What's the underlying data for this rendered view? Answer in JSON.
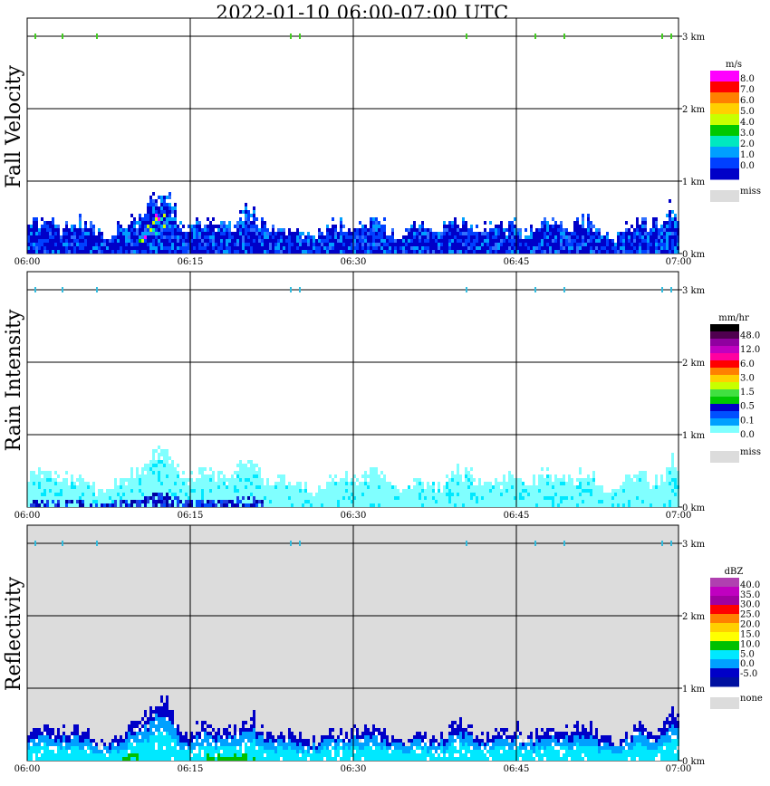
{
  "title": "2022-01-10   06:00-07:00 UTC",
  "time_ticks": [
    "06:00",
    "06:15",
    "06:30",
    "06:45",
    "07:00"
  ],
  "height_ticks": [
    "0 km",
    "1 km",
    "2 km",
    "3 km"
  ],
  "panels": [
    {
      "ylabel": "Fall Velocity",
      "background": "#ffffff",
      "legend": {
        "unit": "m/s",
        "colors": [
          "#ff00ff",
          "#ff0000",
          "#ff8000",
          "#ffd000",
          "#c8ff00",
          "#00c800",
          "#00e8c0",
          "#00a0ff",
          "#0040ff",
          "#0000c8"
        ],
        "labels": [
          "8.0",
          "7.0",
          "6.0",
          "5.0",
          "4.0",
          "3.0",
          "2.0",
          "1.0",
          "0.0"
        ],
        "miss_color": "#dcdcdc",
        "miss_label": "miss"
      },
      "echo_colors": [
        "#0000c8",
        "#0040ff",
        "#3070ff",
        "#00a0ff"
      ],
      "accent_colors": [
        "#00e8c0",
        "#c8ff00",
        "#ff00ff",
        "#00c800"
      ],
      "top_marker_color": "#44cc22"
    },
    {
      "ylabel": "Rain Intensity",
      "background": "#ffffff",
      "legend": {
        "unit": "mm/hr",
        "colors": [
          "#000000",
          "#500050",
          "#9000a0",
          "#c000c0",
          "#ff00a0",
          "#ff0000",
          "#ff8000",
          "#ffd000",
          "#c8ff00",
          "#40e040",
          "#00c800",
          "#0000c8",
          "#0050ff",
          "#00a0ff",
          "#80ffff",
          "#ffffff"
        ],
        "labels": [
          "48.0",
          "12.0",
          "6.0",
          "3.0",
          "1.5",
          "0.5",
          "0.1",
          "0.0"
        ],
        "miss_color": "#dcdcdc",
        "miss_label": "miss"
      },
      "echo_colors": [
        "#80ffff",
        "#80ffff",
        "#00e8ff",
        "#00a0ff"
      ],
      "accent_colors": [
        "#0050ff",
        "#0000c8",
        "#2040e0",
        "#0000a0"
      ],
      "top_marker_color": "#33bbdd"
    },
    {
      "ylabel": "Reflectivity",
      "background": "#dcdcdc",
      "legend": {
        "unit": "dBZ",
        "colors": [
          "#b040b0",
          "#c000c0",
          "#a000a0",
          "#ff0000",
          "#ff8000",
          "#ffd000",
          "#ffff00",
          "#00c000",
          "#00e8ff",
          "#00a0ff",
          "#0000c8",
          "#0010a0"
        ],
        "labels": [
          "40.0",
          "35.0",
          "30.0",
          "25.0",
          "20.0",
          "15.0",
          "10.0",
          "5.0",
          "0.0",
          "-5.0"
        ],
        "miss_color": "#dcdcdc",
        "miss_label": "none"
      },
      "echo_colors": [
        "#0000c8",
        "#00a0ff",
        "#00e8ff",
        "#00e8ff"
      ],
      "accent_colors": [
        "#00c000",
        "#00c000",
        "#00e8ff",
        "#ffffff"
      ],
      "top_marker_color": "#33bbdd"
    }
  ]
}
